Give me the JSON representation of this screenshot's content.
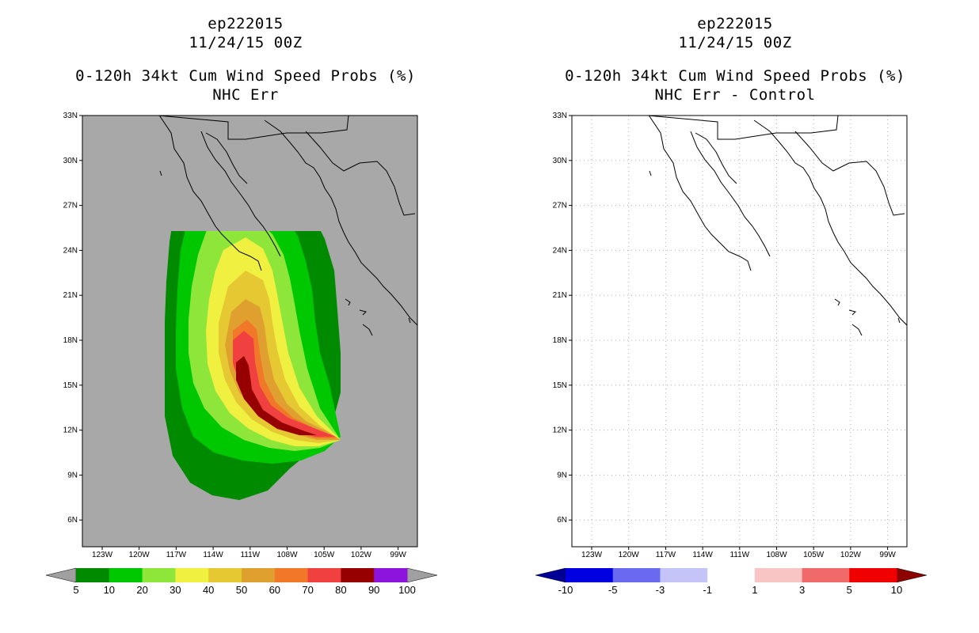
{
  "left_panel": {
    "storm_id": "ep222015",
    "datetime": "11/24/15 00Z",
    "product": "0-120h 34kt Cum Wind Speed Probs (%)",
    "subtitle": "NHC Err"
  },
  "right_panel": {
    "storm_id": "ep222015",
    "datetime": "11/24/15 00Z",
    "product": "0-120h 34kt Cum Wind Speed Probs (%)",
    "subtitle": "NHC Err - Control"
  },
  "axes": {
    "lat_labels": [
      "33N",
      "30N",
      "27N",
      "24N",
      "21N",
      "18N",
      "15N",
      "12N",
      "9N",
      "6N"
    ],
    "lon_labels": [
      "123W",
      "120W",
      "117W",
      "114W",
      "111W",
      "108W",
      "105W",
      "102W",
      "99W"
    ]
  },
  "colorbar_left": {
    "labels": [
      "5",
      "10",
      "20",
      "30",
      "40",
      "50",
      "60",
      "70",
      "80",
      "90",
      "100"
    ],
    "colors": [
      "#008a00",
      "#00c800",
      "#8ee63a",
      "#f0f040",
      "#e6c832",
      "#e0a030",
      "#f07828",
      "#f04040",
      "#960000",
      "#8c14dc"
    ],
    "end_color": "#a0a0a0"
  },
  "colorbar_right": {
    "labels": [
      "-10",
      "-5",
      "-3",
      "-1",
      "1",
      "3",
      "5",
      "10"
    ],
    "colors": [
      "#0000e0",
      "#6a6af0",
      "#c4c4f8",
      "#ffffff",
      "#f8c4c4",
      "#f06a6a",
      "#f00000"
    ],
    "end_low": "#000096",
    "end_high": "#8c0000"
  },
  "colors": {
    "map_bg_left": "#a8a8a8",
    "map_bg_right": "#ffffff",
    "coast": "#000000"
  }
}
